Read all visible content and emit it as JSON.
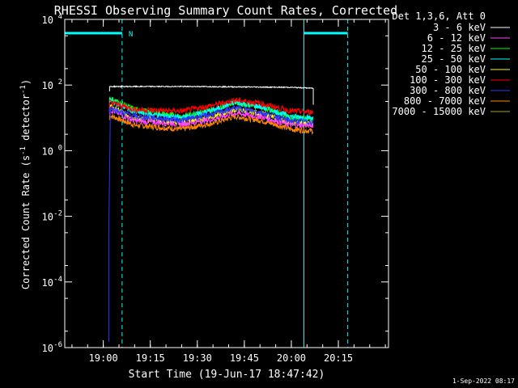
{
  "chart_data": {
    "type": "line",
    "title": "RHESSI Observing Summary Count Rates, Corrected",
    "xlabel": "Start Time (19-Jun-17 18:47:42)",
    "ylabel": "Corrected Count Rate (s⁻¹ detector⁻¹)",
    "ylabel_parts": {
      "main": "Corrected Count Rate (s",
      "exp1": "-1",
      "mid": " detector",
      "exp2": "-1",
      "end": ")"
    },
    "y_scale": "log",
    "ylim": [
      1e-06,
      10000.0
    ],
    "y_ticks": [
      {
        "value": 1e-06,
        "base": "10",
        "exp": "-6"
      },
      {
        "value": 0.0001,
        "base": "10",
        "exp": "-4"
      },
      {
        "value": 0.01,
        "base": "10",
        "exp": "-2"
      },
      {
        "value": 1,
        "base": "10",
        "exp": "0"
      },
      {
        "value": 100,
        "base": "10",
        "exp": "2"
      },
      {
        "value": 10000,
        "base": "10",
        "exp": "4"
      }
    ],
    "xlim": [
      "18:47:42",
      "20:31:00"
    ],
    "x_ticks": [
      "19:00",
      "19:15",
      "19:30",
      "19:45",
      "20:00",
      "20:15"
    ],
    "legend_title": "Det 1,3,6, Att 0",
    "legend_placement": "right",
    "grid": false,
    "series": [
      {
        "name": "3 - 6 keV",
        "color": "#ffffff",
        "start": "19:02",
        "end": "20:07",
        "points": [
          [
            "19:02",
            90
          ],
          [
            "19:30",
            90
          ],
          [
            "20:00",
            85
          ],
          [
            "20:07",
            80
          ]
        ]
      },
      {
        "name": "6 - 12 keV",
        "color": "#ff44ff",
        "start": "19:02",
        "end": "20:07",
        "points": [
          [
            "19:02",
            18
          ],
          [
            "19:10",
            8
          ],
          [
            "19:25",
            6.5
          ],
          [
            "19:35",
            9
          ],
          [
            "19:42",
            14
          ],
          [
            "19:50",
            11
          ],
          [
            "20:00",
            6
          ],
          [
            "20:07",
            6
          ]
        ]
      },
      {
        "name": "12 - 25 keV",
        "color": "#00ff00",
        "start": "19:02",
        "end": "20:07",
        "points": [
          [
            "19:02",
            40
          ],
          [
            "19:10",
            18
          ],
          [
            "19:25",
            11
          ],
          [
            "19:35",
            18
          ],
          [
            "19:42",
            30
          ],
          [
            "19:50",
            22
          ],
          [
            "20:00",
            10
          ],
          [
            "20:07",
            9
          ]
        ]
      },
      {
        "name": "25 - 50 keV",
        "color": "#00ffff",
        "start": "19:02",
        "end": "20:07",
        "points": [
          [
            "19:02",
            35
          ],
          [
            "19:10",
            15
          ],
          [
            "19:25",
            10
          ],
          [
            "19:35",
            17
          ],
          [
            "19:42",
            30
          ],
          [
            "19:50",
            22
          ],
          [
            "20:00",
            11
          ],
          [
            "20:07",
            10
          ]
        ]
      },
      {
        "name": "50 - 100 keV",
        "color": "#ffff00",
        "start": "19:02",
        "end": "20:07",
        "points": [
          [
            "19:02",
            22
          ],
          [
            "19:10",
            10
          ],
          [
            "19:25",
            7
          ],
          [
            "19:35",
            11
          ],
          [
            "19:42",
            18
          ],
          [
            "19:50",
            14
          ],
          [
            "20:00",
            7
          ],
          [
            "20:07",
            7
          ]
        ]
      },
      {
        "name": "100 - 300 keV",
        "color": "#ff0000",
        "start": "19:02",
        "end": "20:07",
        "points": [
          [
            "19:02",
            30
          ],
          [
            "19:10",
            18
          ],
          [
            "19:25",
            16
          ],
          [
            "19:35",
            24
          ],
          [
            "19:42",
            35
          ],
          [
            "19:50",
            28
          ],
          [
            "20:00",
            16
          ],
          [
            "20:07",
            15
          ]
        ]
      },
      {
        "name": "300 - 800 keV",
        "color": "#3333ff",
        "start": "19:02",
        "end": "20:07",
        "points": [
          [
            "19:02",
            20
          ],
          [
            "19:10",
            11
          ],
          [
            "19:25",
            8.5
          ],
          [
            "19:35",
            13
          ],
          [
            "19:42",
            20
          ],
          [
            "19:50",
            15
          ],
          [
            "20:00",
            8
          ],
          [
            "20:07",
            7.5
          ]
        ]
      },
      {
        "name": "800 - 7000 keV",
        "color": "#ff8800",
        "start": "19:02",
        "end": "20:07",
        "points": [
          [
            "19:02",
            12
          ],
          [
            "19:10",
            6
          ],
          [
            "19:25",
            4.5
          ],
          [
            "19:35",
            7
          ],
          [
            "19:42",
            11
          ],
          [
            "19:50",
            8.5
          ],
          [
            "20:00",
            4.5
          ],
          [
            "20:07",
            4
          ]
        ]
      },
      {
        "name": "7000 - 15000 keV",
        "color": "#a8a800",
        "start": "19:02",
        "end": "20:07",
        "points": []
      }
    ],
    "annotations": {
      "timestamp": "1-Sep-2022 08:17",
      "night_marker_label": "N",
      "night_intervals": [
        [
          "18:47:42",
          "19:06"
        ],
        [
          "20:04",
          "20:18"
        ]
      ],
      "saa_dashed_lines": [
        "19:06",
        "20:18"
      ],
      "night_solid_lines": [
        "18:47:42",
        "20:04"
      ]
    }
  }
}
